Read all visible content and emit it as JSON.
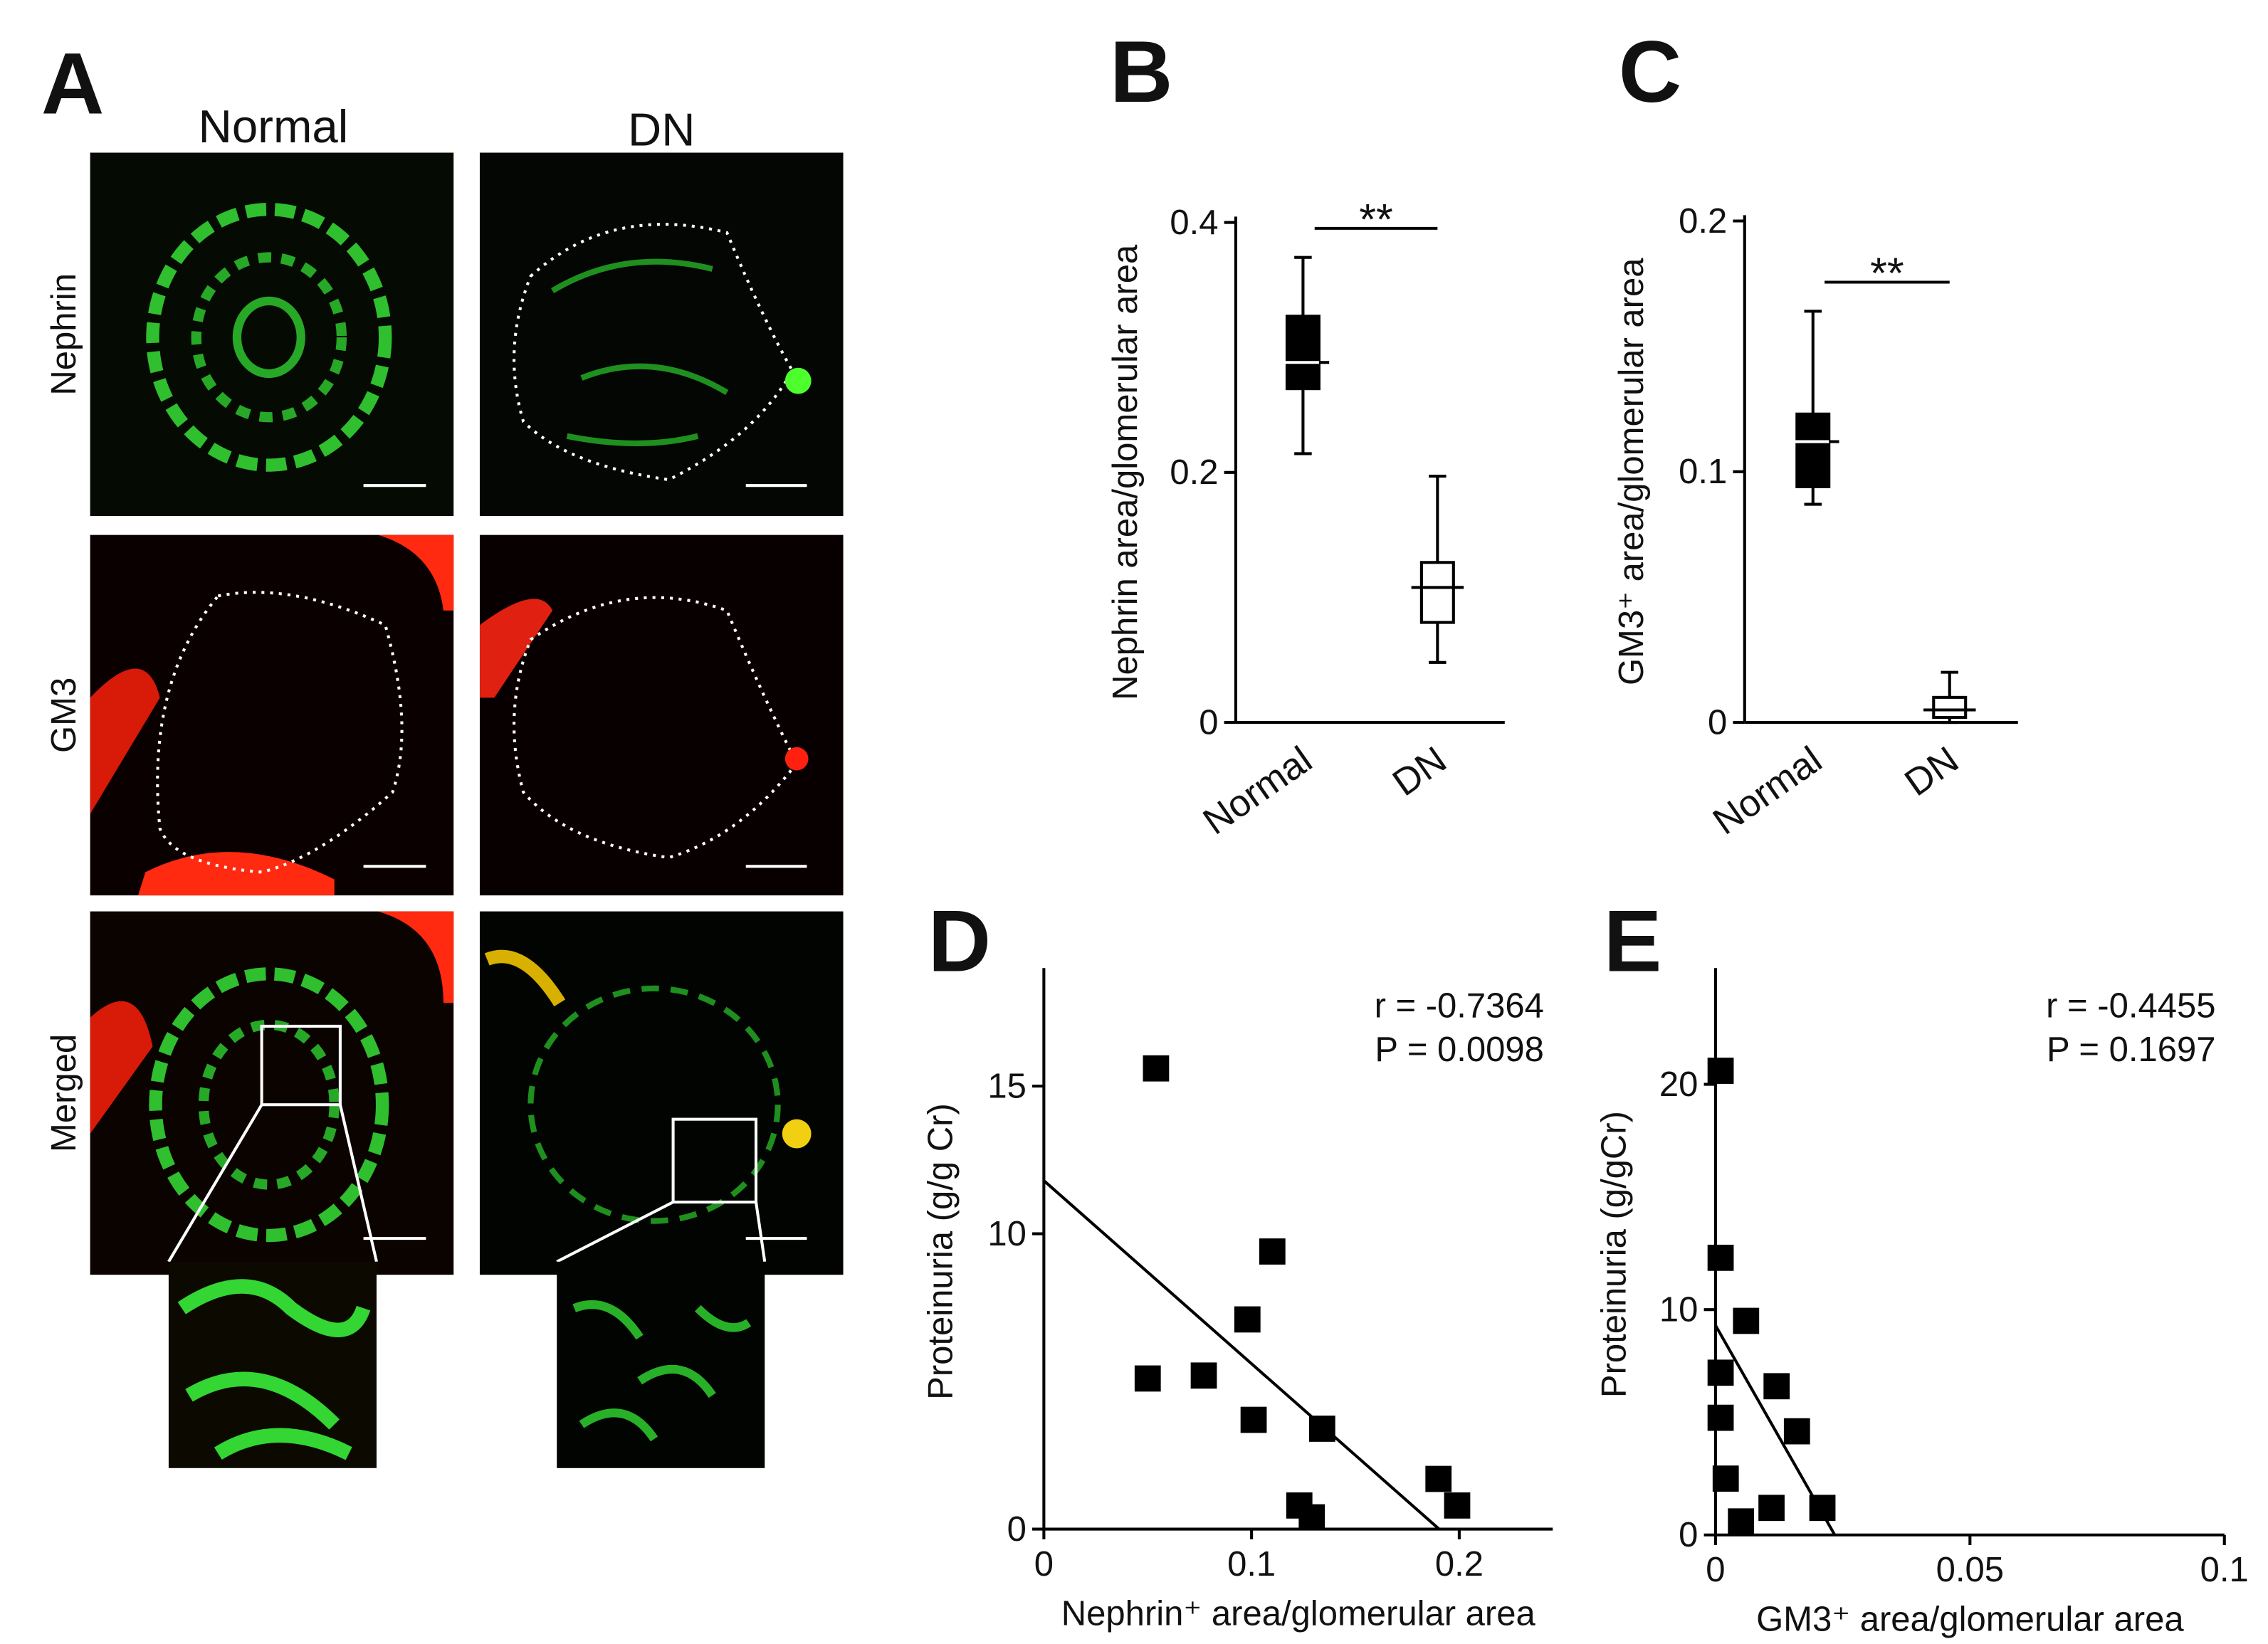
{
  "panel_a": {
    "label": "A",
    "columns": [
      "Normal",
      "DN"
    ],
    "rows": [
      "Nephrin",
      "GM3",
      "Merged"
    ]
  },
  "chart_data": [
    {
      "type": "box",
      "panel": "B",
      "ylabel": "Nephrin area/glomerular area",
      "categories": [
        "Normal",
        "DN"
      ],
      "boxes": [
        {
          "min": 0.215,
          "q1": 0.267,
          "median": 0.288,
          "q3": 0.325,
          "max": 0.372
        },
        {
          "min": 0.048,
          "q1": 0.08,
          "median": 0.108,
          "q3": 0.128,
          "max": 0.197
        }
      ],
      "colors": [
        "#000000",
        "#ffffff"
      ],
      "ylim": [
        0,
        0.4
      ],
      "yticks": [
        0,
        0.2,
        0.4
      ],
      "annotation": "**"
    },
    {
      "type": "box",
      "panel": "C",
      "ylabel": "GM3⁺ area/glomerular area",
      "categories": [
        "Normal",
        "DN"
      ],
      "boxes": [
        {
          "min": 0.087,
          "q1": 0.094,
          "median": 0.112,
          "q3": 0.123,
          "max": 0.164
        },
        {
          "min": 0,
          "q1": 0.002,
          "median": 0.005,
          "q3": 0.01,
          "max": 0.02
        }
      ],
      "colors": [
        "#000000",
        "#ffffff"
      ],
      "ylim": [
        0,
        0.2
      ],
      "yticks": [
        0,
        0.1,
        0.2
      ],
      "annotation": "**"
    },
    {
      "type": "scatter",
      "panel": "D",
      "xlabel": "Nephrin⁺ area/glomerular area",
      "ylabel": "Proteinuria (g/g Cr)",
      "x": [
        0.054,
        0.11,
        0.098,
        0.05,
        0.077,
        0.101,
        0.134,
        0.123,
        0.129,
        0.19,
        0.199
      ],
      "values": [
        15.6,
        9.4,
        7.1,
        5.1,
        5.2,
        3.7,
        3.4,
        0.8,
        0.4,
        1.7,
        0.8
      ],
      "fit": {
        "intercept": 11.8,
        "slope": -62
      },
      "color": "#000000",
      "annotations": [
        "r = -0.7364",
        "P = 0.0098"
      ],
      "xlim": [
        0,
        0.245
      ],
      "xticks": [
        0,
        0.1,
        0.2
      ],
      "ylim": [
        0,
        18.8
      ],
      "yticks": [
        0,
        10,
        15
      ]
    },
    {
      "type": "scatter",
      "panel": "E",
      "xlabel": "GM3⁺ area/glomerular area",
      "ylabel": "Proteinuria (g/gCr)",
      "x": [
        0.001,
        0.001,
        0.006,
        0.001,
        0.012,
        0.001,
        0.016,
        0.002,
        0.011,
        0.005,
        0.021
      ],
      "values": [
        20.6,
        12.3,
        9.5,
        7.2,
        6.6,
        5.2,
        4.6,
        2.5,
        1.2,
        0.6,
        1.2
      ],
      "fit": {
        "intercept": 9.3,
        "slope": -397
      },
      "color": "#000000",
      "annotations": [
        "r = -0.4455",
        "P = 0.1697"
      ],
      "xlim": [
        0,
        0.1
      ],
      "xticks": [
        0,
        0.05,
        0.1
      ],
      "ylim": [
        0,
        24.9
      ],
      "yticks": [
        0,
        10,
        20
      ]
    }
  ]
}
